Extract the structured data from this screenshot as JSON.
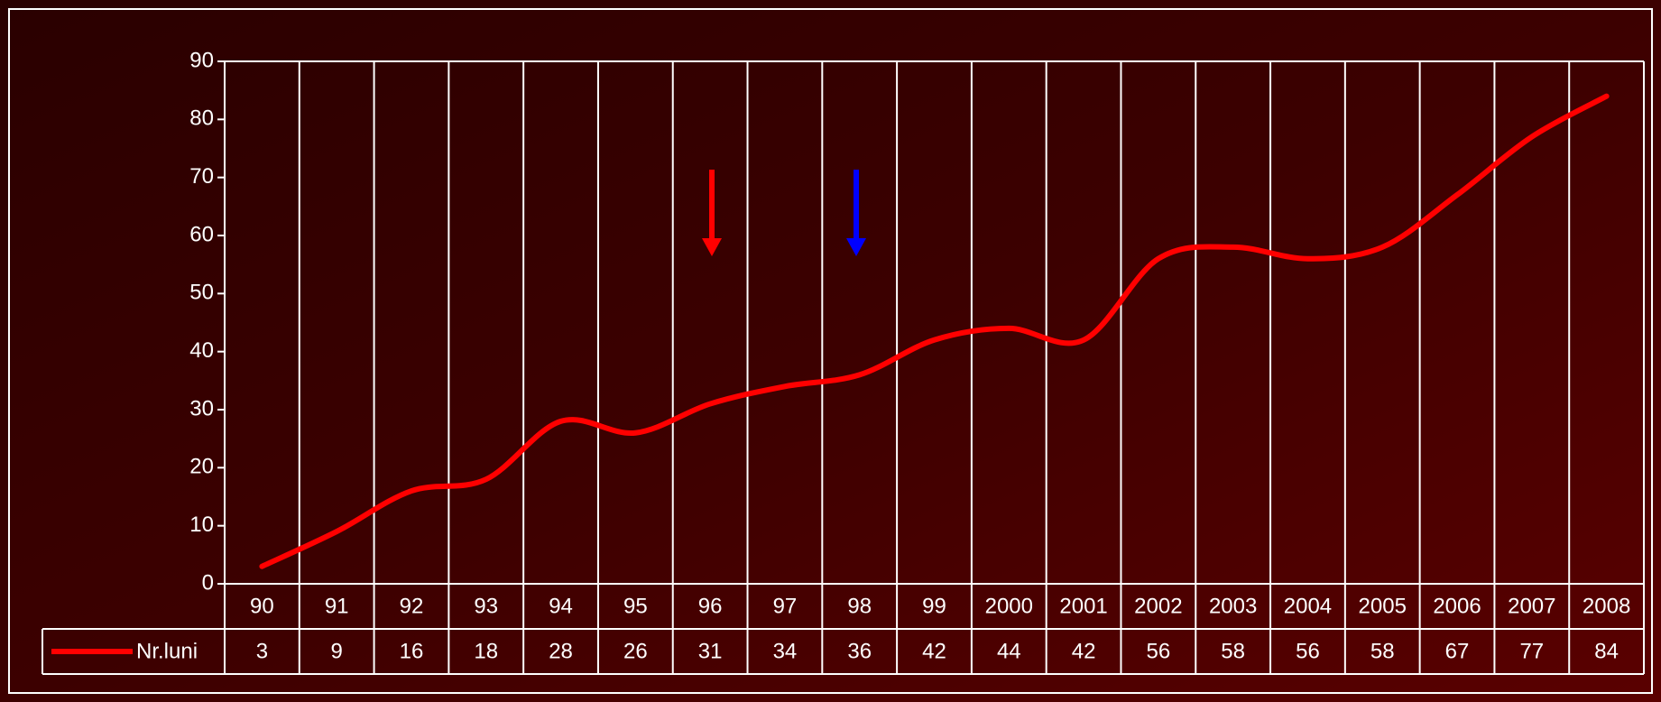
{
  "chart_data": {
    "type": "line",
    "categories": [
      "90",
      "91",
      "92",
      "93",
      "94",
      "95",
      "96",
      "97",
      "98",
      "99",
      "2000",
      "2001",
      "2002",
      "2003",
      "2004",
      "2005",
      "2006",
      "2007",
      "2008"
    ],
    "series": [
      {
        "name": "Nr.luni",
        "color": "#ff0000",
        "values": [
          3,
          9,
          16,
          18,
          28,
          26,
          31,
          34,
          36,
          42,
          44,
          42,
          56,
          58,
          56,
          58,
          67,
          77,
          84
        ]
      }
    ],
    "ylim": [
      0,
      90
    ],
    "yticks": [
      0,
      10,
      20,
      30,
      40,
      50,
      60,
      70,
      80,
      90
    ]
  }
}
